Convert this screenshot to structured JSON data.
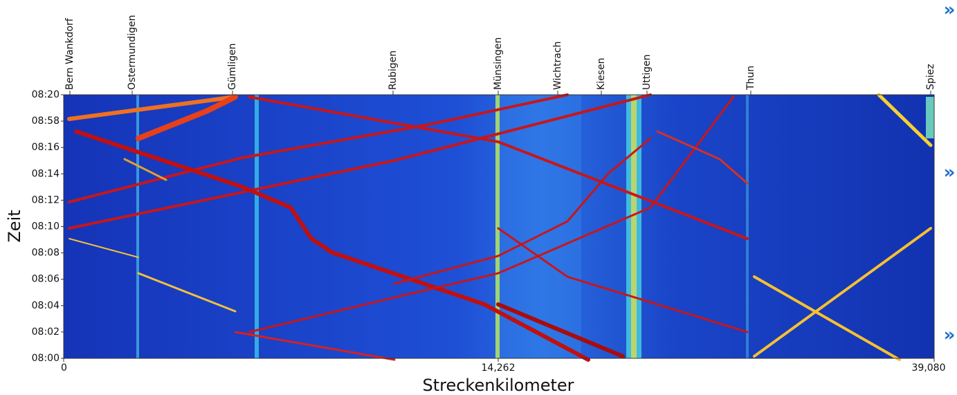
{
  "chart_data": {
    "type": "heatmap",
    "ylabel": "Zeit",
    "xlabel": "Streckenkilometer",
    "xlim": [
      0,
      39080
    ],
    "xticks": [
      0,
      {
        "value": 14262,
        "label": "14,262"
      },
      {
        "value": 39080,
        "label": "39,080"
      }
    ],
    "y_categories": [
      "08:00",
      "08:02",
      "08:04",
      "08:06",
      "08:08",
      "08:10",
      "08:12",
      "08:14",
      "08:16",
      "08:58",
      "08:20"
    ],
    "stations": [
      "Bern Wankdorf",
      "Ostermundigen",
      "Gümligen",
      "Rubigen",
      "Münsingen",
      "Wichtrach",
      "Kiesen",
      "Uttigen",
      "Thun",
      "Spiez"
    ]
  },
  "nav": [
    "»",
    "»",
    "»"
  ]
}
